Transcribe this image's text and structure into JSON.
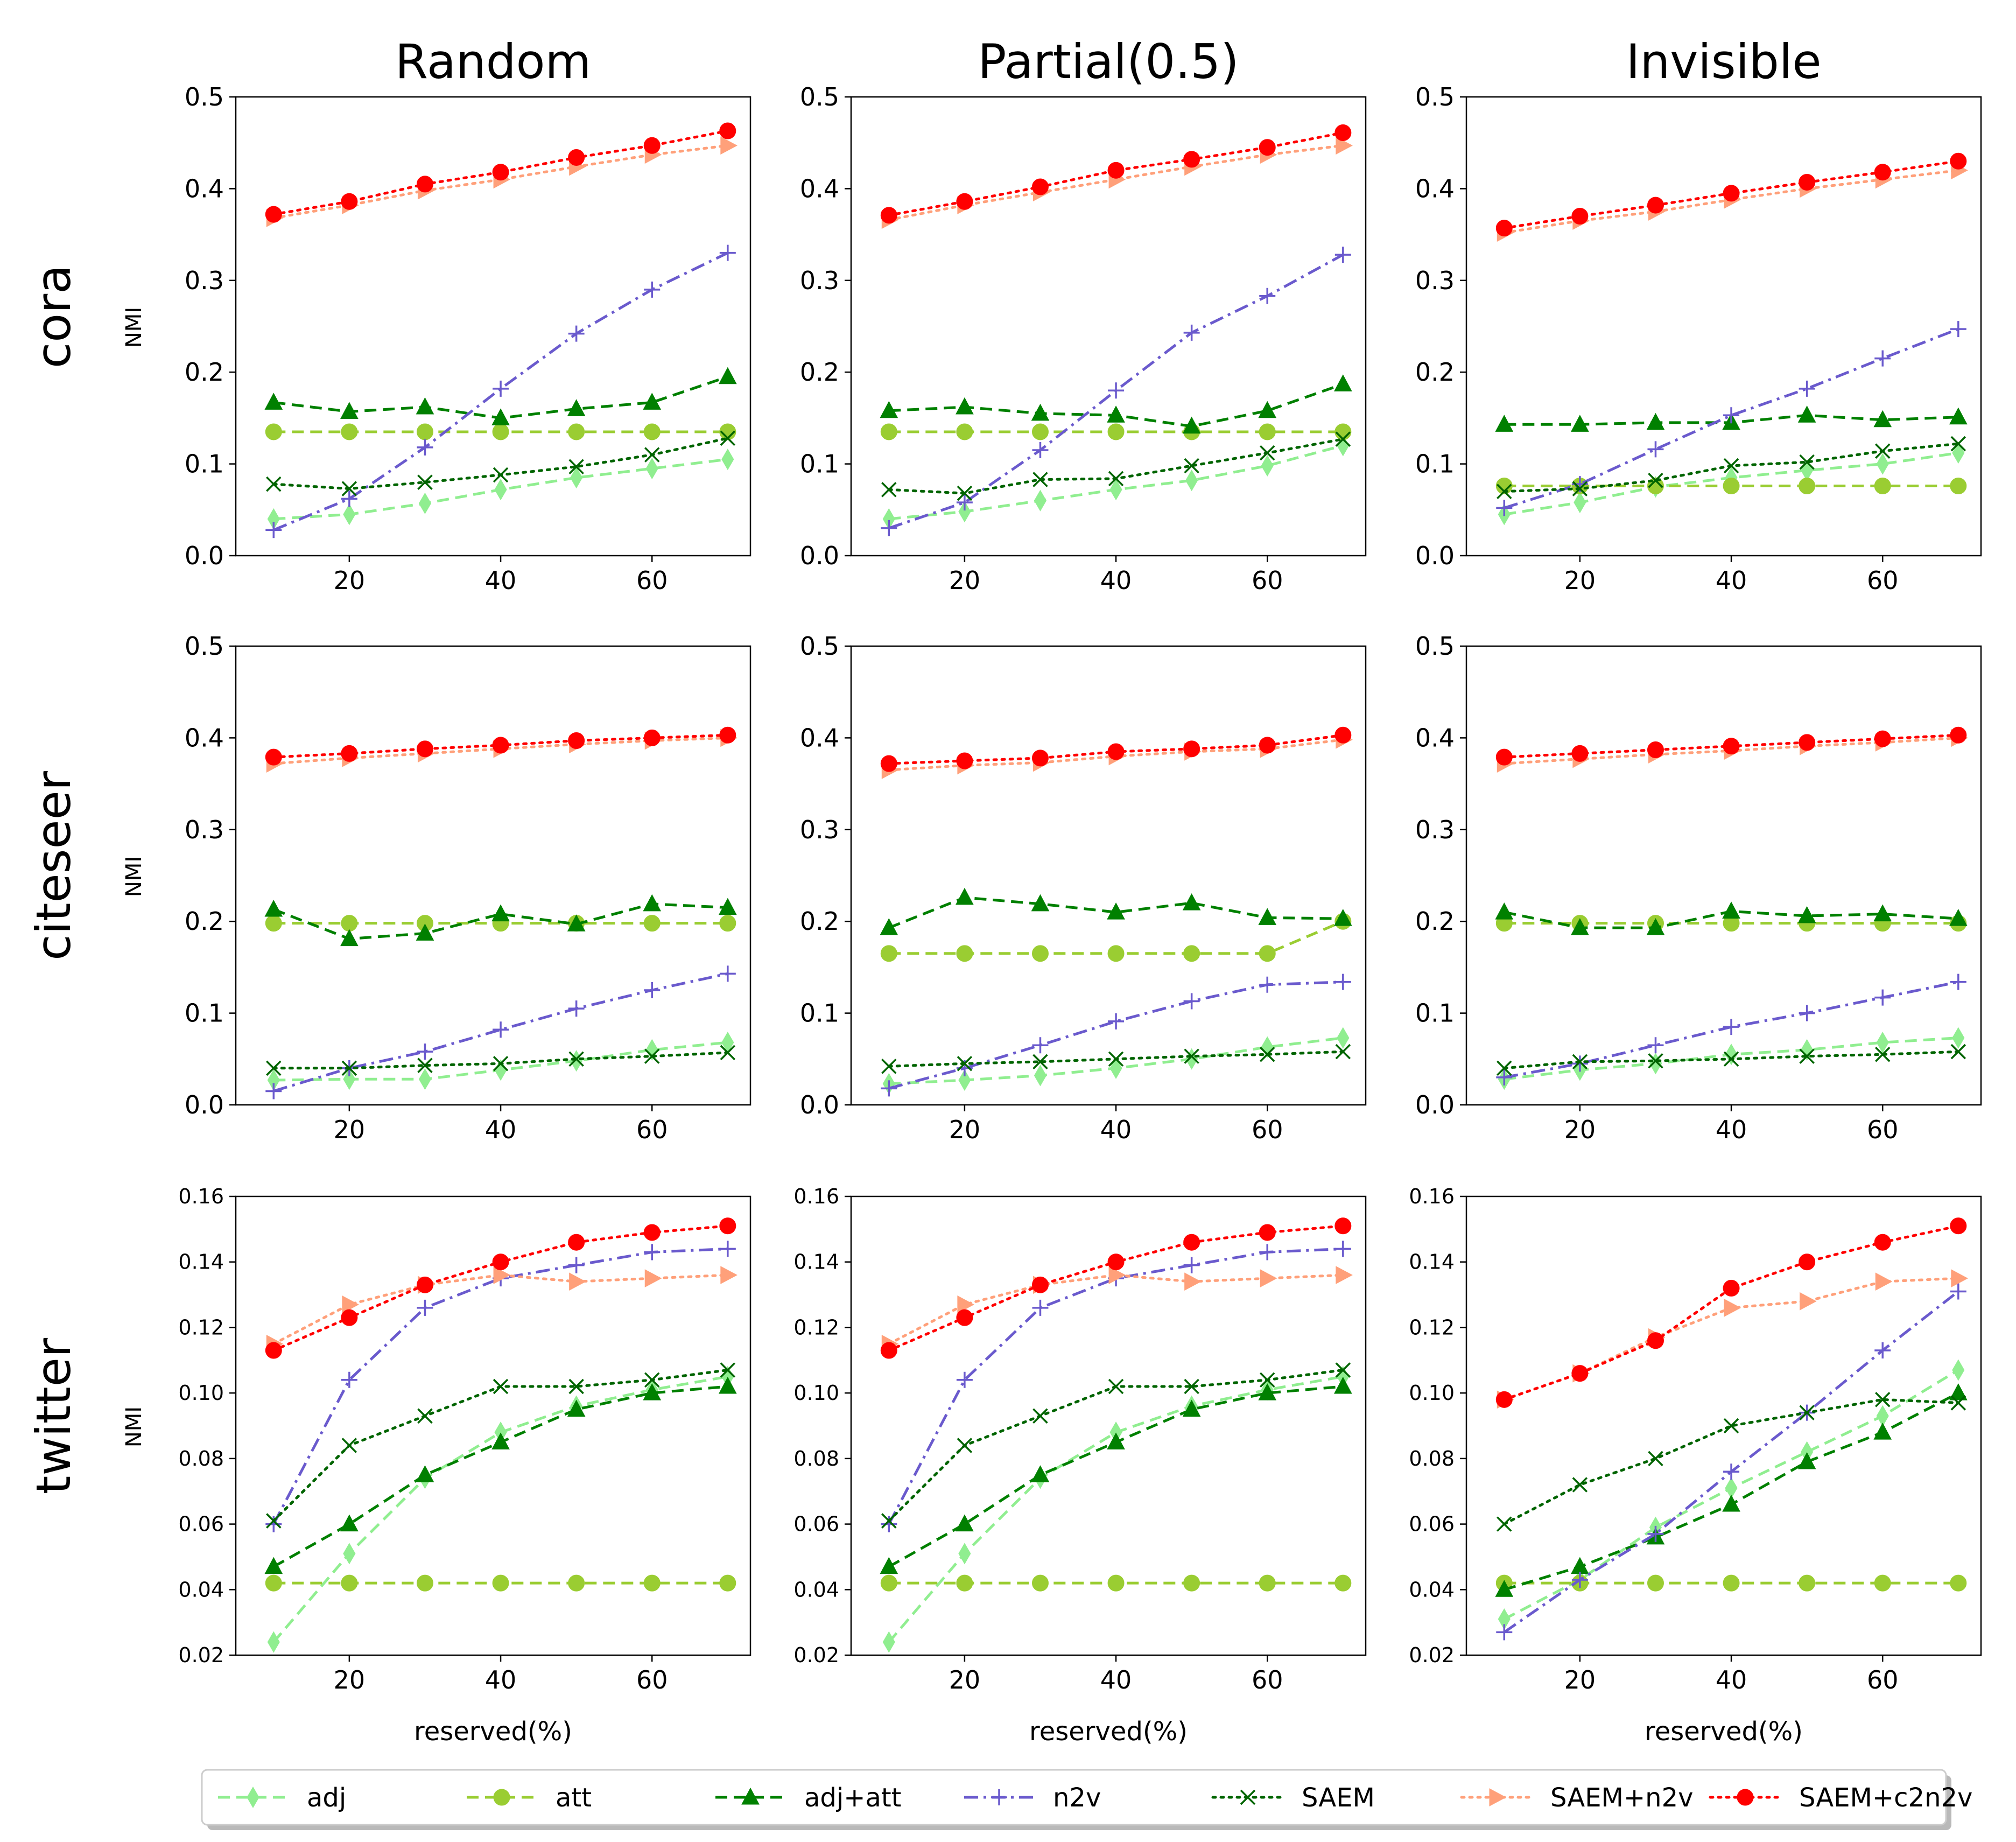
{
  "figure": {
    "column_titles": [
      "Random",
      "Partial(0.5)",
      "Invisible"
    ],
    "row_titles": [
      "cora",
      "citeseer",
      "twitter"
    ],
    "ylabel": "NMI",
    "xlabel": "reserved(%)"
  },
  "series_styles": [
    {
      "key": "adj",
      "name": "adj",
      "color": "#90ee90",
      "marker": "diamond",
      "dash": "dashed"
    },
    {
      "key": "att",
      "name": "att",
      "color": "#9acd32",
      "marker": "circle",
      "dash": "dashed"
    },
    {
      "key": "adjatt",
      "name": "adj+att",
      "color": "#008000",
      "marker": "triangle",
      "dash": "dashed"
    },
    {
      "key": "n2v",
      "name": "n2v",
      "color": "#6a5acd",
      "marker": "plus",
      "dash": "dashdot"
    },
    {
      "key": "saem",
      "name": "SAEM",
      "color": "#006400",
      "marker": "x",
      "dash": "dotted"
    },
    {
      "key": "saemn2v",
      "name": "SAEM+n2v",
      "color": "#ffa07a",
      "marker": "triangle-right",
      "dash": "dotted"
    },
    {
      "key": "saemc2n2v",
      "name": "SAEM+c2n2v",
      "color": "#ff0000",
      "marker": "circle",
      "dash": "dotted"
    }
  ],
  "chart_data": [
    {
      "type": "line",
      "row": "cora",
      "col": "Random",
      "x": [
        10,
        20,
        30,
        40,
        50,
        60,
        70
      ],
      "xlim": [
        5,
        73
      ],
      "ylim": [
        0,
        0.5
      ],
      "xticks": [
        20,
        40,
        60
      ],
      "yticks": [
        0.0,
        0.1,
        0.2,
        0.3,
        0.4,
        0.5
      ],
      "series": [
        {
          "name": "adj",
          "values": [
            0.04,
            0.045,
            0.057,
            0.072,
            0.085,
            0.095,
            0.105
          ]
        },
        {
          "name": "att",
          "values": [
            0.135,
            0.135,
            0.135,
            0.135,
            0.135,
            0.135,
            0.135
          ]
        },
        {
          "name": "adj+att",
          "values": [
            0.167,
            0.157,
            0.162,
            0.15,
            0.16,
            0.167,
            0.195
          ]
        },
        {
          "name": "n2v",
          "values": [
            0.028,
            0.062,
            0.118,
            0.182,
            0.242,
            0.29,
            0.33
          ]
        },
        {
          "name": "SAEM",
          "values": [
            0.078,
            0.073,
            0.08,
            0.088,
            0.097,
            0.11,
            0.128
          ]
        },
        {
          "name": "SAEM+n2v",
          "values": [
            0.368,
            0.382,
            0.398,
            0.41,
            0.424,
            0.437,
            0.447
          ]
        },
        {
          "name": "SAEM+c2n2v",
          "values": [
            0.372,
            0.386,
            0.405,
            0.418,
            0.434,
            0.447,
            0.463
          ]
        }
      ]
    },
    {
      "type": "line",
      "row": "cora",
      "col": "Partial(0.5)",
      "x": [
        10,
        20,
        30,
        40,
        50,
        60,
        70
      ],
      "xlim": [
        5,
        73
      ],
      "ylim": [
        0,
        0.5
      ],
      "xticks": [
        20,
        40,
        60
      ],
      "yticks": [
        0.0,
        0.1,
        0.2,
        0.3,
        0.4,
        0.5
      ],
      "series": [
        {
          "name": "adj",
          "values": [
            0.04,
            0.048,
            0.06,
            0.072,
            0.082,
            0.098,
            0.12
          ]
        },
        {
          "name": "att",
          "values": [
            0.135,
            0.135,
            0.135,
            0.135,
            0.135,
            0.135,
            0.135
          ]
        },
        {
          "name": "adj+att",
          "values": [
            0.158,
            0.162,
            0.155,
            0.153,
            0.141,
            0.158,
            0.187
          ]
        },
        {
          "name": "n2v",
          "values": [
            0.03,
            0.058,
            0.115,
            0.18,
            0.243,
            0.283,
            0.328
          ]
        },
        {
          "name": "SAEM",
          "values": [
            0.072,
            0.068,
            0.083,
            0.084,
            0.098,
            0.112,
            0.127
          ]
        },
        {
          "name": "SAEM+n2v",
          "values": [
            0.366,
            0.382,
            0.396,
            0.41,
            0.424,
            0.437,
            0.447
          ]
        },
        {
          "name": "SAEM+c2n2v",
          "values": [
            0.371,
            0.386,
            0.402,
            0.42,
            0.432,
            0.445,
            0.461
          ]
        }
      ]
    },
    {
      "type": "line",
      "row": "cora",
      "col": "Invisible",
      "x": [
        10,
        20,
        30,
        40,
        50,
        60,
        70
      ],
      "xlim": [
        5,
        73
      ],
      "ylim": [
        0,
        0.5
      ],
      "xticks": [
        20,
        40,
        60
      ],
      "yticks": [
        0.0,
        0.1,
        0.2,
        0.3,
        0.4,
        0.5
      ],
      "series": [
        {
          "name": "adj",
          "values": [
            0.045,
            0.058,
            0.075,
            0.085,
            0.093,
            0.1,
            0.112
          ]
        },
        {
          "name": "att",
          "values": [
            0.076,
            0.076,
            0.076,
            0.076,
            0.076,
            0.076,
            0.076
          ]
        },
        {
          "name": "adj+att",
          "values": [
            0.143,
            0.143,
            0.145,
            0.145,
            0.153,
            0.148,
            0.151
          ]
        },
        {
          "name": "n2v",
          "values": [
            0.052,
            0.078,
            0.116,
            0.153,
            0.182,
            0.215,
            0.247
          ]
        },
        {
          "name": "SAEM",
          "values": [
            0.07,
            0.073,
            0.082,
            0.098,
            0.102,
            0.114,
            0.122
          ]
        },
        {
          "name": "SAEM+n2v",
          "values": [
            0.352,
            0.365,
            0.375,
            0.388,
            0.4,
            0.41,
            0.42
          ]
        },
        {
          "name": "SAEM+c2n2v",
          "values": [
            0.357,
            0.37,
            0.382,
            0.395,
            0.407,
            0.418,
            0.43
          ]
        }
      ]
    },
    {
      "type": "line",
      "row": "citeseer",
      "col": "Random",
      "x": [
        10,
        20,
        30,
        40,
        50,
        60,
        70
      ],
      "xlim": [
        5,
        73
      ],
      "ylim": [
        0,
        0.5
      ],
      "xticks": [
        20,
        40,
        60
      ],
      "yticks": [
        0.0,
        0.1,
        0.2,
        0.3,
        0.4,
        0.5
      ],
      "series": [
        {
          "name": "adj",
          "values": [
            0.027,
            0.028,
            0.028,
            0.038,
            0.048,
            0.06,
            0.068
          ]
        },
        {
          "name": "att",
          "values": [
            0.198,
            0.198,
            0.198,
            0.198,
            0.198,
            0.198,
            0.198
          ]
        },
        {
          "name": "adj+att",
          "values": [
            0.213,
            0.181,
            0.187,
            0.208,
            0.197,
            0.219,
            0.215
          ]
        },
        {
          "name": "n2v",
          "values": [
            0.015,
            0.04,
            0.058,
            0.082,
            0.105,
            0.125,
            0.143
          ]
        },
        {
          "name": "SAEM",
          "values": [
            0.04,
            0.04,
            0.043,
            0.045,
            0.05,
            0.053,
            0.057
          ]
        },
        {
          "name": "SAEM+n2v",
          "values": [
            0.372,
            0.378,
            0.383,
            0.388,
            0.393,
            0.397,
            0.4
          ]
        },
        {
          "name": "SAEM+c2n2v",
          "values": [
            0.379,
            0.383,
            0.388,
            0.392,
            0.397,
            0.4,
            0.403
          ]
        }
      ]
    },
    {
      "type": "line",
      "row": "citeseer",
      "col": "Partial(0.5)",
      "x": [
        10,
        20,
        30,
        40,
        50,
        60,
        70
      ],
      "xlim": [
        5,
        73
      ],
      "ylim": [
        0,
        0.5
      ],
      "xticks": [
        20,
        40,
        60
      ],
      "yticks": [
        0.0,
        0.1,
        0.2,
        0.3,
        0.4,
        0.5
      ],
      "series": [
        {
          "name": "adj",
          "values": [
            0.023,
            0.027,
            0.032,
            0.04,
            0.05,
            0.063,
            0.073
          ]
        },
        {
          "name": "att",
          "values": [
            0.165,
            0.165,
            0.165,
            0.165,
            0.165,
            0.165,
            0.2
          ]
        },
        {
          "name": "adj+att",
          "values": [
            0.193,
            0.226,
            0.219,
            0.21,
            0.22,
            0.204,
            0.203
          ]
        },
        {
          "name": "n2v",
          "values": [
            0.018,
            0.04,
            0.065,
            0.091,
            0.113,
            0.131,
            0.134
          ]
        },
        {
          "name": "SAEM",
          "values": [
            0.042,
            0.045,
            0.047,
            0.05,
            0.053,
            0.055,
            0.058
          ]
        },
        {
          "name": "SAEM+n2v",
          "values": [
            0.365,
            0.37,
            0.373,
            0.38,
            0.385,
            0.388,
            0.398
          ]
        },
        {
          "name": "SAEM+c2n2v",
          "values": [
            0.372,
            0.375,
            0.378,
            0.385,
            0.388,
            0.392,
            0.403
          ]
        }
      ]
    },
    {
      "type": "line",
      "row": "citeseer",
      "col": "Invisible",
      "x": [
        10,
        20,
        30,
        40,
        50,
        60,
        70
      ],
      "xlim": [
        5,
        73
      ],
      "ylim": [
        0,
        0.5
      ],
      "xticks": [
        20,
        40,
        60
      ],
      "yticks": [
        0.0,
        0.1,
        0.2,
        0.3,
        0.4,
        0.5
      ],
      "series": [
        {
          "name": "adj",
          "values": [
            0.028,
            0.038,
            0.045,
            0.055,
            0.06,
            0.068,
            0.073
          ]
        },
        {
          "name": "att",
          "values": [
            0.198,
            0.198,
            0.198,
            0.198,
            0.198,
            0.198,
            0.198
          ]
        },
        {
          "name": "adj+att",
          "values": [
            0.21,
            0.193,
            0.193,
            0.211,
            0.206,
            0.208,
            0.203
          ]
        },
        {
          "name": "n2v",
          "values": [
            0.03,
            0.045,
            0.065,
            0.085,
            0.1,
            0.117,
            0.134
          ]
        },
        {
          "name": "SAEM",
          "values": [
            0.04,
            0.047,
            0.048,
            0.05,
            0.053,
            0.055,
            0.058
          ]
        },
        {
          "name": "SAEM+n2v",
          "values": [
            0.372,
            0.377,
            0.382,
            0.386,
            0.391,
            0.395,
            0.4
          ]
        },
        {
          "name": "SAEM+c2n2v",
          "values": [
            0.379,
            0.383,
            0.387,
            0.391,
            0.395,
            0.399,
            0.403
          ]
        }
      ]
    },
    {
      "type": "line",
      "row": "twitter",
      "col": "Random",
      "x": [
        10,
        20,
        30,
        40,
        50,
        60,
        70
      ],
      "xlim": [
        5,
        73
      ],
      "ylim": [
        0.02,
        0.16
      ],
      "xticks": [
        20,
        40,
        60
      ],
      "yticks": [
        0.02,
        0.04,
        0.06,
        0.08,
        0.1,
        0.12,
        0.14,
        0.16
      ],
      "series": [
        {
          "name": "adj",
          "values": [
            0.024,
            0.051,
            0.074,
            0.088,
            0.096,
            0.101,
            0.105
          ]
        },
        {
          "name": "att",
          "values": [
            0.042,
            0.042,
            0.042,
            0.042,
            0.042,
            0.042,
            0.042
          ]
        },
        {
          "name": "adj+att",
          "values": [
            0.047,
            0.06,
            0.075,
            0.085,
            0.095,
            0.1,
            0.102
          ]
        },
        {
          "name": "n2v",
          "values": [
            0.06,
            0.104,
            0.126,
            0.135,
            0.139,
            0.143,
            0.144
          ]
        },
        {
          "name": "SAEM",
          "values": [
            0.061,
            0.084,
            0.093,
            0.102,
            0.102,
            0.104,
            0.107
          ]
        },
        {
          "name": "SAEM+n2v",
          "values": [
            0.115,
            0.127,
            0.133,
            0.136,
            0.134,
            0.135,
            0.136
          ]
        },
        {
          "name": "SAEM+c2n2v",
          "values": [
            0.113,
            0.123,
            0.133,
            0.14,
            0.146,
            0.149,
            0.151
          ]
        }
      ]
    },
    {
      "type": "line",
      "row": "twitter",
      "col": "Partial(0.5)",
      "x": [
        10,
        20,
        30,
        40,
        50,
        60,
        70
      ],
      "xlim": [
        5,
        73
      ],
      "ylim": [
        0.02,
        0.16
      ],
      "xticks": [
        20,
        40,
        60
      ],
      "yticks": [
        0.02,
        0.04,
        0.06,
        0.08,
        0.1,
        0.12,
        0.14,
        0.16
      ],
      "series": [
        {
          "name": "adj",
          "values": [
            0.024,
            0.051,
            0.074,
            0.088,
            0.096,
            0.101,
            0.105
          ]
        },
        {
          "name": "att",
          "values": [
            0.042,
            0.042,
            0.042,
            0.042,
            0.042,
            0.042,
            0.042
          ]
        },
        {
          "name": "adj+att",
          "values": [
            0.047,
            0.06,
            0.075,
            0.085,
            0.095,
            0.1,
            0.102
          ]
        },
        {
          "name": "n2v",
          "values": [
            0.06,
            0.104,
            0.126,
            0.135,
            0.139,
            0.143,
            0.144
          ]
        },
        {
          "name": "SAEM",
          "values": [
            0.061,
            0.084,
            0.093,
            0.102,
            0.102,
            0.104,
            0.107
          ]
        },
        {
          "name": "SAEM+n2v",
          "values": [
            0.115,
            0.127,
            0.133,
            0.136,
            0.134,
            0.135,
            0.136
          ]
        },
        {
          "name": "SAEM+c2n2v",
          "values": [
            0.113,
            0.123,
            0.133,
            0.14,
            0.146,
            0.149,
            0.151
          ]
        }
      ]
    },
    {
      "type": "line",
      "row": "twitter",
      "col": "Invisible",
      "x": [
        10,
        20,
        30,
        40,
        50,
        60,
        70
      ],
      "xlim": [
        5,
        73
      ],
      "ylim": [
        0.02,
        0.16
      ],
      "xticks": [
        20,
        40,
        60
      ],
      "yticks": [
        0.02,
        0.04,
        0.06,
        0.08,
        0.1,
        0.12,
        0.14,
        0.16
      ],
      "series": [
        {
          "name": "adj",
          "values": [
            0.031,
            0.043,
            0.059,
            0.071,
            0.082,
            0.093,
            0.107
          ]
        },
        {
          "name": "att",
          "values": [
            0.042,
            0.042,
            0.042,
            0.042,
            0.042,
            0.042,
            0.042
          ]
        },
        {
          "name": "adj+att",
          "values": [
            0.04,
            0.047,
            0.056,
            0.066,
            0.079,
            0.088,
            0.1
          ]
        },
        {
          "name": "n2v",
          "values": [
            0.027,
            0.043,
            0.057,
            0.076,
            0.094,
            0.113,
            0.131
          ]
        },
        {
          "name": "SAEM",
          "values": [
            0.06,
            0.072,
            0.08,
            0.09,
            0.094,
            0.098,
            0.097
          ]
        },
        {
          "name": "SAEM+n2v",
          "values": [
            0.098,
            0.106,
            0.117,
            0.126,
            0.128,
            0.134,
            0.135
          ]
        },
        {
          "name": "SAEM+c2n2v",
          "values": [
            0.098,
            0.106,
            0.116,
            0.132,
            0.14,
            0.146,
            0.151
          ]
        }
      ]
    }
  ]
}
